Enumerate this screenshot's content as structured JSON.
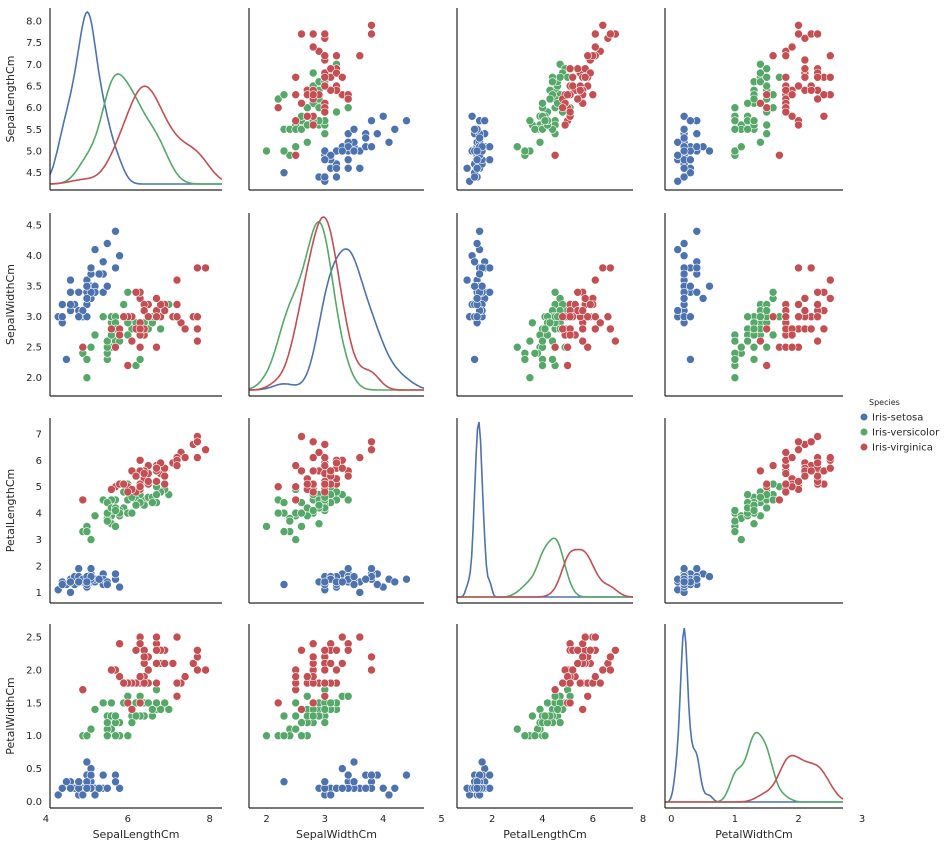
{
  "chart_data": {
    "type": "scatter",
    "variables": [
      "SepalLengthCm",
      "SepalWidthCm",
      "PetalLengthCm",
      "PetalWidthCm"
    ],
    "ranges": {
      "SepalLengthCm": [
        4.1,
        8.3
      ],
      "SepalWidthCm": [
        1.7,
        4.7
      ],
      "PetalLengthCm": [
        0.6,
        7.6
      ],
      "PetalWidthCm": [
        -0.1,
        2.7
      ]
    },
    "ticks": {
      "x": {
        "SepalLengthCm": [
          4,
          6,
          8
        ],
        "SepalWidthCm": [
          2,
          3,
          4,
          5
        ],
        "PetalLengthCm": [
          2,
          4,
          6,
          8
        ],
        "PetalWidthCm": [
          0,
          1,
          2,
          3
        ]
      },
      "y": {
        "SepalLengthCm": [
          4.5,
          5.0,
          5.5,
          6.0,
          6.5,
          7.0,
          7.5,
          8.0
        ],
        "SepalWidthCm": [
          2.0,
          2.5,
          3.0,
          3.5,
          4.0,
          4.5
        ],
        "PetalLengthCm": [
          1,
          2,
          3,
          4,
          5,
          6,
          7
        ],
        "PetalWidthCm": [
          0.0,
          0.5,
          1.0,
          1.5,
          2.0,
          2.5
        ]
      }
    },
    "legend": {
      "title": "Species",
      "position": "right",
      "entries": [
        "Iris-setosa",
        "Iris-versicolor",
        "Iris-virginica"
      ]
    },
    "colors": {
      "Iris-setosa": "#4c72b0",
      "Iris-versicolor": "#55a868",
      "Iris-virginica": "#c44e52"
    },
    "series": [
      {
        "name": "Iris-setosa",
        "points": [
          [
            5.1,
            3.5,
            1.4,
            0.2
          ],
          [
            4.9,
            3.0,
            1.4,
            0.2
          ],
          [
            4.7,
            3.2,
            1.3,
            0.2
          ],
          [
            4.6,
            3.1,
            1.5,
            0.2
          ],
          [
            5.0,
            3.6,
            1.4,
            0.2
          ],
          [
            5.4,
            3.9,
            1.7,
            0.4
          ],
          [
            4.6,
            3.4,
            1.4,
            0.3
          ],
          [
            5.0,
            3.4,
            1.5,
            0.2
          ],
          [
            4.4,
            2.9,
            1.4,
            0.2
          ],
          [
            4.9,
            3.1,
            1.5,
            0.1
          ],
          [
            5.4,
            3.7,
            1.5,
            0.2
          ],
          [
            4.8,
            3.4,
            1.6,
            0.2
          ],
          [
            4.8,
            3.0,
            1.4,
            0.1
          ],
          [
            4.3,
            3.0,
            1.1,
            0.1
          ],
          [
            5.8,
            4.0,
            1.2,
            0.2
          ],
          [
            5.7,
            4.4,
            1.5,
            0.4
          ],
          [
            5.4,
            3.9,
            1.3,
            0.4
          ],
          [
            5.1,
            3.5,
            1.4,
            0.3
          ],
          [
            5.7,
            3.8,
            1.7,
            0.3
          ],
          [
            5.1,
            3.8,
            1.5,
            0.3
          ],
          [
            5.4,
            3.4,
            1.7,
            0.2
          ],
          [
            5.1,
            3.7,
            1.5,
            0.4
          ],
          [
            4.6,
            3.6,
            1.0,
            0.2
          ],
          [
            5.1,
            3.3,
            1.7,
            0.5
          ],
          [
            4.8,
            3.4,
            1.9,
            0.2
          ],
          [
            5.0,
            3.0,
            1.6,
            0.2
          ],
          [
            5.0,
            3.4,
            1.6,
            0.4
          ],
          [
            5.2,
            3.5,
            1.5,
            0.2
          ],
          [
            5.2,
            3.4,
            1.4,
            0.2
          ],
          [
            4.7,
            3.2,
            1.6,
            0.2
          ],
          [
            4.8,
            3.1,
            1.6,
            0.2
          ],
          [
            5.4,
            3.4,
            1.5,
            0.4
          ],
          [
            5.2,
            4.1,
            1.5,
            0.1
          ],
          [
            5.5,
            4.2,
            1.4,
            0.2
          ],
          [
            4.9,
            3.1,
            1.5,
            0.1
          ],
          [
            5.0,
            3.2,
            1.2,
            0.2
          ],
          [
            5.5,
            3.5,
            1.3,
            0.2
          ],
          [
            4.9,
            3.1,
            1.5,
            0.1
          ],
          [
            4.4,
            3.0,
            1.3,
            0.2
          ],
          [
            5.1,
            3.4,
            1.5,
            0.2
          ],
          [
            5.0,
            3.5,
            1.3,
            0.3
          ],
          [
            4.5,
            2.3,
            1.3,
            0.3
          ],
          [
            4.4,
            3.2,
            1.3,
            0.2
          ],
          [
            5.0,
            3.5,
            1.6,
            0.6
          ],
          [
            5.1,
            3.8,
            1.9,
            0.4
          ],
          [
            4.8,
            3.0,
            1.4,
            0.3
          ],
          [
            5.1,
            3.8,
            1.6,
            0.2
          ],
          [
            4.6,
            3.2,
            1.4,
            0.2
          ],
          [
            5.3,
            3.7,
            1.5,
            0.2
          ],
          [
            5.0,
            3.3,
            1.4,
            0.2
          ]
        ]
      },
      {
        "name": "Iris-versicolor",
        "points": [
          [
            7.0,
            3.2,
            4.7,
            1.4
          ],
          [
            6.4,
            3.2,
            4.5,
            1.5
          ],
          [
            6.9,
            3.1,
            4.9,
            1.5
          ],
          [
            5.5,
            2.3,
            4.0,
            1.3
          ],
          [
            6.5,
            2.8,
            4.6,
            1.5
          ],
          [
            5.7,
            2.8,
            4.5,
            1.3
          ],
          [
            6.3,
            3.3,
            4.7,
            1.6
          ],
          [
            4.9,
            2.4,
            3.3,
            1.0
          ],
          [
            6.6,
            2.9,
            4.6,
            1.3
          ],
          [
            5.2,
            2.7,
            3.9,
            1.4
          ],
          [
            5.0,
            2.0,
            3.5,
            1.0
          ],
          [
            5.9,
            3.0,
            4.2,
            1.5
          ],
          [
            6.0,
            2.2,
            4.0,
            1.0
          ],
          [
            6.1,
            2.9,
            4.7,
            1.4
          ],
          [
            5.6,
            2.9,
            3.6,
            1.3
          ],
          [
            6.7,
            3.1,
            4.4,
            1.4
          ],
          [
            5.6,
            3.0,
            4.5,
            1.5
          ],
          [
            5.8,
            2.7,
            4.1,
            1.0
          ],
          [
            6.2,
            2.2,
            4.5,
            1.5
          ],
          [
            5.6,
            2.5,
            3.9,
            1.1
          ],
          [
            5.9,
            3.2,
            4.8,
            1.8
          ],
          [
            6.1,
            2.8,
            4.0,
            1.3
          ],
          [
            6.3,
            2.5,
            4.9,
            1.5
          ],
          [
            6.1,
            2.8,
            4.7,
            1.2
          ],
          [
            6.4,
            2.9,
            4.3,
            1.3
          ],
          [
            6.6,
            3.0,
            4.4,
            1.4
          ],
          [
            6.8,
            2.8,
            4.8,
            1.4
          ],
          [
            6.7,
            3.0,
            5.0,
            1.7
          ],
          [
            6.0,
            2.9,
            4.5,
            1.5
          ],
          [
            5.7,
            2.6,
            3.5,
            1.0
          ],
          [
            5.5,
            2.4,
            3.8,
            1.1
          ],
          [
            5.5,
            2.4,
            3.7,
            1.0
          ],
          [
            5.8,
            2.7,
            3.9,
            1.2
          ],
          [
            6.0,
            2.7,
            5.1,
            1.6
          ],
          [
            5.4,
            3.0,
            4.5,
            1.5
          ],
          [
            6.0,
            3.4,
            4.5,
            1.6
          ],
          [
            6.7,
            3.1,
            4.7,
            1.5
          ],
          [
            6.3,
            2.3,
            4.4,
            1.3
          ],
          [
            5.6,
            3.0,
            4.1,
            1.3
          ],
          [
            5.5,
            2.5,
            4.0,
            1.3
          ],
          [
            5.5,
            2.6,
            4.4,
            1.2
          ],
          [
            6.1,
            3.0,
            4.6,
            1.4
          ],
          [
            5.8,
            2.6,
            4.0,
            1.2
          ],
          [
            5.0,
            2.3,
            3.3,
            1.0
          ],
          [
            5.6,
            2.7,
            4.2,
            1.3
          ],
          [
            5.7,
            3.0,
            4.2,
            1.2
          ],
          [
            5.7,
            2.9,
            4.2,
            1.3
          ],
          [
            6.2,
            2.9,
            4.3,
            1.3
          ],
          [
            5.1,
            2.5,
            3.0,
            1.1
          ],
          [
            5.7,
            2.8,
            4.1,
            1.3
          ]
        ]
      },
      {
        "name": "Iris-virginica",
        "points": [
          [
            6.3,
            3.3,
            6.0,
            2.5
          ],
          [
            5.8,
            2.7,
            5.1,
            1.9
          ],
          [
            7.1,
            3.0,
            5.9,
            2.1
          ],
          [
            6.3,
            2.9,
            5.6,
            1.8
          ],
          [
            6.5,
            3.0,
            5.8,
            2.2
          ],
          [
            7.6,
            3.0,
            6.6,
            2.1
          ],
          [
            4.9,
            2.5,
            4.5,
            1.7
          ],
          [
            7.3,
            2.9,
            6.3,
            1.8
          ],
          [
            6.7,
            2.5,
            5.8,
            1.8
          ],
          [
            7.2,
            3.6,
            6.1,
            2.5
          ],
          [
            6.5,
            3.2,
            5.1,
            2.0
          ],
          [
            6.4,
            2.7,
            5.3,
            1.9
          ],
          [
            6.8,
            3.0,
            5.5,
            2.1
          ],
          [
            5.7,
            2.5,
            5.0,
            2.0
          ],
          [
            5.8,
            2.8,
            5.1,
            2.4
          ],
          [
            6.4,
            3.2,
            5.3,
            2.3
          ],
          [
            6.5,
            3.0,
            5.5,
            1.8
          ],
          [
            7.7,
            3.8,
            6.7,
            2.2
          ],
          [
            7.7,
            2.6,
            6.9,
            2.3
          ],
          [
            6.0,
            2.2,
            5.0,
            1.5
          ],
          [
            6.9,
            3.2,
            5.7,
            2.3
          ],
          [
            5.6,
            2.8,
            4.9,
            2.0
          ],
          [
            7.7,
            2.8,
            6.7,
            2.0
          ],
          [
            6.3,
            2.7,
            4.9,
            1.8
          ],
          [
            6.7,
            3.3,
            5.7,
            2.1
          ],
          [
            7.2,
            3.2,
            6.0,
            1.8
          ],
          [
            6.2,
            2.8,
            4.8,
            1.8
          ],
          [
            6.1,
            3.0,
            4.9,
            1.8
          ],
          [
            6.4,
            2.8,
            5.6,
            2.1
          ],
          [
            7.2,
            3.0,
            5.8,
            1.6
          ],
          [
            7.4,
            2.8,
            6.1,
            1.9
          ],
          [
            7.9,
            3.8,
            6.4,
            2.0
          ],
          [
            6.4,
            2.8,
            5.6,
            2.2
          ],
          [
            6.3,
            2.8,
            5.1,
            1.5
          ],
          [
            6.1,
            2.6,
            5.6,
            1.4
          ],
          [
            7.7,
            3.0,
            6.1,
            2.3
          ],
          [
            6.3,
            3.4,
            5.6,
            2.4
          ],
          [
            6.4,
            3.1,
            5.5,
            1.8
          ],
          [
            6.0,
            3.0,
            4.8,
            1.8
          ],
          [
            6.9,
            3.1,
            5.4,
            2.1
          ],
          [
            6.7,
            3.1,
            5.6,
            2.4
          ],
          [
            6.9,
            3.1,
            5.1,
            2.3
          ],
          [
            5.8,
            2.7,
            5.1,
            1.9
          ],
          [
            6.8,
            3.2,
            5.9,
            2.3
          ],
          [
            6.7,
            3.3,
            5.7,
            2.5
          ],
          [
            6.7,
            3.0,
            5.2,
            2.3
          ],
          [
            6.3,
            2.5,
            5.0,
            1.9
          ],
          [
            6.5,
            3.0,
            5.2,
            2.0
          ],
          [
            6.2,
            3.4,
            5.4,
            2.3
          ],
          [
            5.9,
            3.0,
            5.1,
            1.8
          ]
        ]
      }
    ]
  }
}
